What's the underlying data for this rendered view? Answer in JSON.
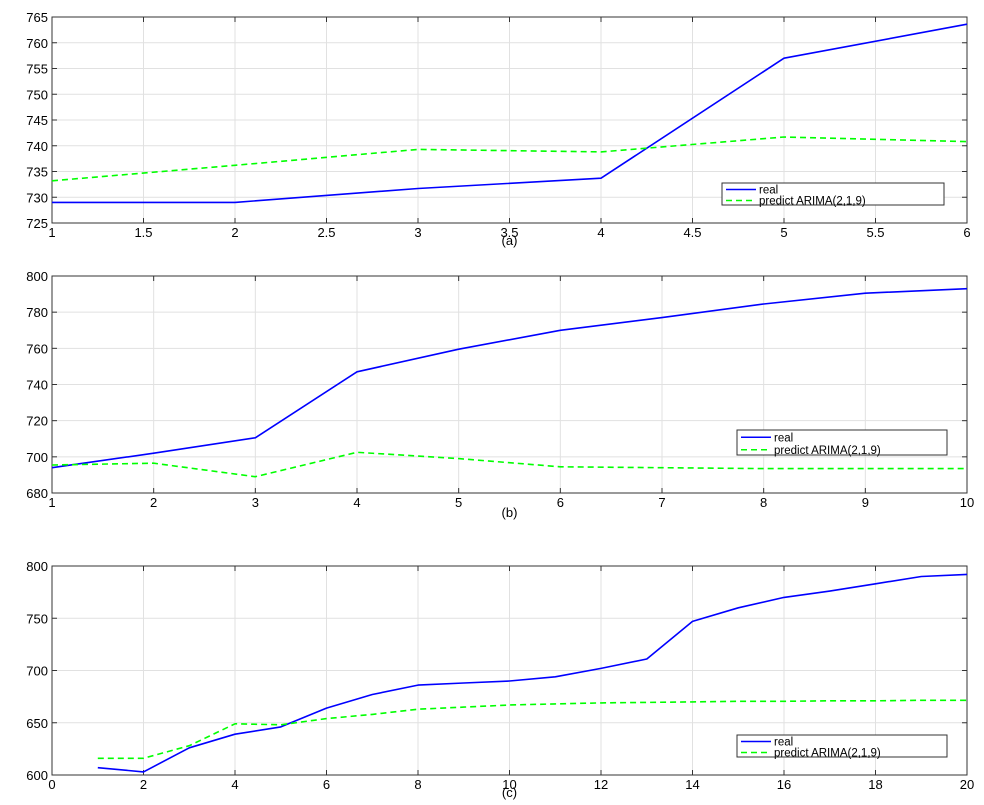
{
  "chart_data": [
    {
      "type": "line",
      "caption": "(a)",
      "xlim": [
        1,
        6
      ],
      "ylim": [
        725,
        765
      ],
      "xticks": [
        1,
        1.5,
        2,
        2.5,
        3,
        3.5,
        4,
        4.5,
        5,
        5.5,
        6
      ],
      "xtick_labels": [
        "1",
        "1.5",
        "2",
        "2.5",
        "3",
        "3.5",
        "4",
        "4.5",
        "5",
        "5.5",
        "6"
      ],
      "yticks": [
        725,
        730,
        735,
        740,
        745,
        750,
        755,
        760,
        765
      ],
      "ytick_labels": [
        "725",
        "730",
        "735",
        "740",
        "745",
        "750",
        "755",
        "760",
        "765"
      ],
      "grid": true,
      "legend_position": "bottom-right",
      "series": [
        {
          "name": "real",
          "color": "#0000ff",
          "style": "solid",
          "x": [
            1,
            2,
            3,
            4,
            5,
            6
          ],
          "values": [
            729,
            729,
            731.7,
            733.7,
            757,
            763.6
          ]
        },
        {
          "name": "predict ARIMA(2,1,9)",
          "color": "#00ff00",
          "style": "dashed",
          "x": [
            1,
            2,
            3,
            4,
            5,
            6
          ],
          "values": [
            733.2,
            736.2,
            739.3,
            738.8,
            741.7,
            740.8
          ]
        }
      ]
    },
    {
      "type": "line",
      "caption": "(b)",
      "xlim": [
        1,
        10
      ],
      "ylim": [
        680,
        800
      ],
      "xticks": [
        1,
        2,
        3,
        4,
        5,
        6,
        7,
        8,
        9,
        10
      ],
      "xtick_labels": [
        "1",
        "2",
        "3",
        "4",
        "5",
        "6",
        "7",
        "8",
        "9",
        "10"
      ],
      "yticks": [
        680,
        700,
        720,
        740,
        760,
        780,
        800
      ],
      "ytick_labels": [
        "680",
        "700",
        "720",
        "740",
        "760",
        "780",
        "800"
      ],
      "grid": true,
      "legend_position": "bottom-right",
      "series": [
        {
          "name": "real",
          "color": "#0000ff",
          "style": "solid",
          "x": [
            1,
            2,
            3,
            4,
            5,
            6,
            7,
            8,
            9,
            10
          ],
          "values": [
            694,
            702,
            710.5,
            747,
            759.5,
            770,
            777,
            784.5,
            790.5,
            793
          ]
        },
        {
          "name": "predict ARIMA(2,1,9)",
          "color": "#00ff00",
          "style": "dashed",
          "x": [
            1,
            2,
            3,
            4,
            5,
            6,
            7,
            8,
            9,
            10
          ],
          "values": [
            695.5,
            696.5,
            689,
            702.5,
            699,
            694.5,
            694,
            693.5,
            693.5,
            693.5
          ]
        }
      ]
    },
    {
      "type": "line",
      "caption": "(c)",
      "xlim": [
        0,
        20
      ],
      "ylim": [
        600,
        800
      ],
      "xticks": [
        0,
        2,
        4,
        6,
        8,
        10,
        12,
        14,
        16,
        18,
        20
      ],
      "xtick_labels": [
        "0",
        "2",
        "4",
        "6",
        "8",
        "10",
        "12",
        "14",
        "16",
        "18",
        "20"
      ],
      "yticks": [
        600,
        650,
        700,
        750,
        800
      ],
      "ytick_labels": [
        "600",
        "650",
        "700",
        "750",
        "800"
      ],
      "grid": true,
      "legend_position": "bottom-right",
      "series": [
        {
          "name": "real",
          "color": "#0000ff",
          "style": "solid",
          "x": [
            1,
            2,
            3,
            4,
            5,
            6,
            7,
            8,
            9,
            10,
            11,
            12,
            13,
            14,
            15,
            16,
            17,
            18,
            19,
            20
          ],
          "values": [
            607,
            603,
            626,
            639,
            646,
            664,
            677,
            686,
            688,
            690,
            694,
            702,
            711,
            747,
            760,
            770,
            776,
            783,
            790,
            792
          ]
        },
        {
          "name": "predict ARIMA(2,1,9)",
          "color": "#00ff00",
          "style": "dashed",
          "x": [
            1,
            2,
            3,
            4,
            5,
            6,
            7,
            8,
            9,
            10,
            11,
            12,
            13,
            14,
            15,
            16,
            17,
            18,
            19,
            20
          ],
          "values": [
            616,
            616,
            628,
            649,
            648,
            654,
            658,
            663,
            665,
            667,
            668,
            669,
            669.5,
            670,
            670.5,
            670.5,
            671,
            671,
            671.5,
            671.5
          ]
        }
      ]
    }
  ]
}
